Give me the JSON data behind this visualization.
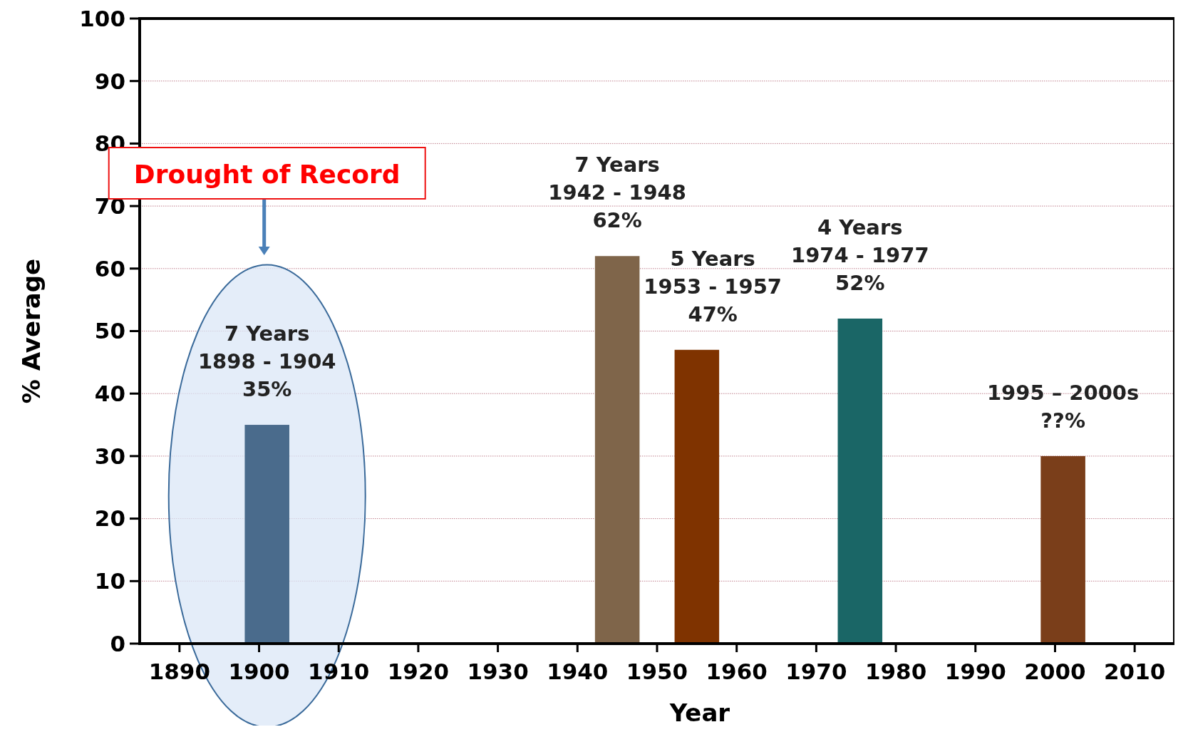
{
  "chart_data": {
    "type": "bar",
    "xlabel": "Year",
    "ylabel": "% Average",
    "x": [
      1901,
      1945,
      1955,
      1975.5,
      2001
    ],
    "values": [
      35,
      62,
      47,
      52,
      30
    ],
    "colors": [
      "#4a6b8c",
      "#7f654a",
      "#7f3300",
      "#1a6666",
      "#7a3e1a"
    ],
    "xlim": [
      1885,
      2015
    ],
    "xticks": [
      1890,
      1900,
      1910,
      1920,
      1930,
      1940,
      1950,
      1960,
      1970,
      1980,
      1990,
      2000,
      2010
    ],
    "ylim": [
      0,
      100
    ],
    "yticks": [
      0,
      10,
      20,
      30,
      40,
      50,
      60,
      70,
      80,
      90,
      100
    ],
    "grid": "y",
    "annotations": [
      "Drought of Record",
      {
        "text": "7 Years\n1898 - 1904\n35%",
        "x": 1901,
        "y": 35
      },
      {
        "text": "7 Years\n1942 - 1948\n62%",
        "x": 1945,
        "y": 62
      },
      {
        "text": "5 Years\n1953 - 1957\n47%",
        "x": 1957,
        "y": 47
      },
      {
        "text": "4 Years\n1974 - 1977\n52%",
        "x": 1975.5,
        "y": 52
      },
      {
        "text": "1995 – 2000s\n??%",
        "x": 2001,
        "y": 30
      }
    ]
  }
}
